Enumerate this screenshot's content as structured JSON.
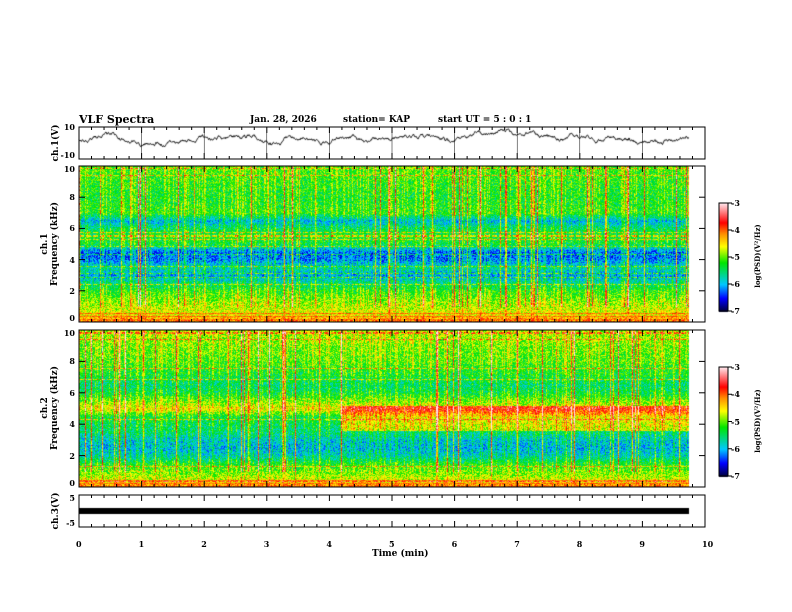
{
  "header": {
    "title": "VLF Spectra",
    "date": "Jan. 28, 2026",
    "station": "station= KAP",
    "start": "start  UT =  5 : 0  : 1"
  },
  "chart_data": [
    {
      "type": "line",
      "name": "ch1",
      "ylabel": "ch.1(V)",
      "ylim": [
        -10,
        10
      ],
      "yticks": [
        "10",
        "-10"
      ],
      "xlim": [
        0,
        10
      ],
      "note": "noisy waveform around 0 to 5 V"
    },
    {
      "type": "heatmap",
      "name": "spectrogram-ch1",
      "ylabel": "ch.1\nFrequency (kHz)",
      "ylabel1": "ch.1",
      "ylabel2": "Frequency (kHz)",
      "ylim": [
        0,
        10
      ],
      "yticks": [
        "0",
        "2",
        "4",
        "6",
        "8",
        "10"
      ],
      "xlim": [
        0,
        10
      ],
      "colorbar": {
        "label": "log(PSD)(V²/Hz)",
        "range": [
          -7,
          -3
        ],
        "ticks": [
          "-3",
          "-4",
          "-5",
          "-6",
          "-7"
        ]
      },
      "profile_khz": [
        0,
        0.5,
        1,
        1.5,
        2,
        2.5,
        3,
        3.5,
        4,
        4.5,
        5,
        5.5,
        6,
        6.5,
        7,
        8,
        9,
        10
      ],
      "profile_logpsd": [
        -4.0,
        -4.6,
        -4.8,
        -5.0,
        -5.2,
        -5.6,
        -6.1,
        -5.7,
        -6.2,
        -6.3,
        -5.4,
        -5.3,
        -5.5,
        -6.0,
        -5.2,
        -5.3,
        -5.2,
        -5.1
      ]
    },
    {
      "type": "heatmap",
      "name": "spectrogram-ch2",
      "ylabel1": "ch.2",
      "ylabel2": "Frequency (kHz)",
      "ylim": [
        0,
        10
      ],
      "yticks": [
        "0",
        "2",
        "4",
        "6",
        "8",
        "10"
      ],
      "xlim": [
        0,
        10
      ],
      "colorbar": {
        "label": "log(PSD)(V²/Hz)",
        "range": [
          -7,
          -3
        ],
        "ticks": [
          "-3",
          "-4",
          "-5",
          "-6",
          "-7"
        ]
      },
      "profile_khz": [
        0,
        0.5,
        1,
        1.5,
        2,
        2.5,
        3,
        3.5,
        4,
        4.5,
        5,
        5.5,
        6,
        6.5,
        7,
        8,
        9,
        10
      ],
      "profile_logpsd": [
        -4.0,
        -4.7,
        -5.0,
        -5.3,
        -5.8,
        -6.0,
        -5.9,
        -5.6,
        -5.5,
        -5.4,
        -4.6,
        -5.0,
        -5.4,
        -5.6,
        -5.4,
        -5.1,
        -5.0,
        -4.8
      ]
    },
    {
      "type": "line",
      "name": "ch3",
      "ylabel": "ch.3(V)",
      "ylim": [
        -5,
        5
      ],
      "yticks": [
        "5",
        "-5"
      ],
      "xlim": [
        0,
        10
      ],
      "value_approx": -1.5,
      "xlabel": "Time (min)",
      "xticks": [
        "0",
        "1",
        "2",
        "3",
        "4",
        "5",
        "6",
        "7",
        "8",
        "9",
        "10"
      ]
    }
  ]
}
